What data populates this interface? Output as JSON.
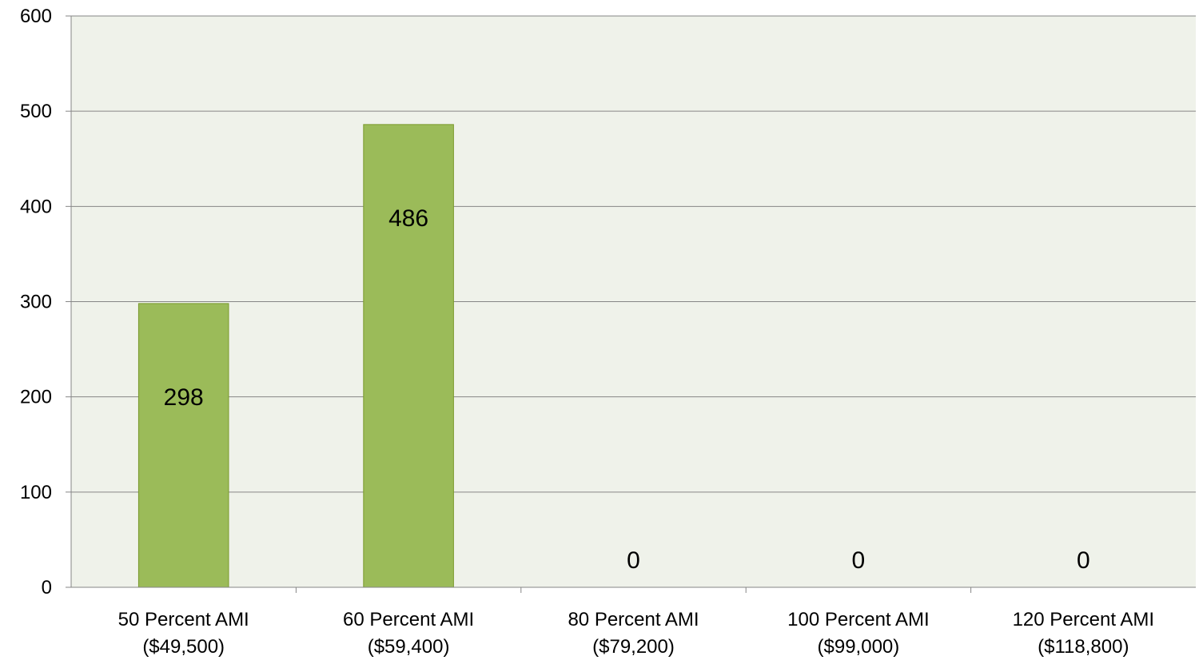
{
  "chart_data": {
    "type": "bar",
    "categories": [
      [
        "50 Percent AMI",
        "($49,500)"
      ],
      [
        "60 Percent AMI",
        "($59,400)"
      ],
      [
        "80 Percent AMI",
        "($79,200)"
      ],
      [
        "100 Percent AMI",
        "($99,000)"
      ],
      [
        "120 Percent AMI",
        "($118,800)"
      ]
    ],
    "values": [
      298,
      486,
      0,
      0,
      0
    ],
    "data_labels": [
      "298",
      "486",
      "0",
      "0",
      "0"
    ],
    "yticks": [
      "0",
      "100",
      "200",
      "300",
      "400",
      "500",
      "600"
    ],
    "ylim": [
      0,
      600
    ],
    "grid": true,
    "legend": "none",
    "colors": {
      "bar": "#9bbb59",
      "bar_border": "#7a9a2c",
      "plot_bg": "#eff2ea",
      "grid": "#868686",
      "axis": "#868686"
    }
  }
}
